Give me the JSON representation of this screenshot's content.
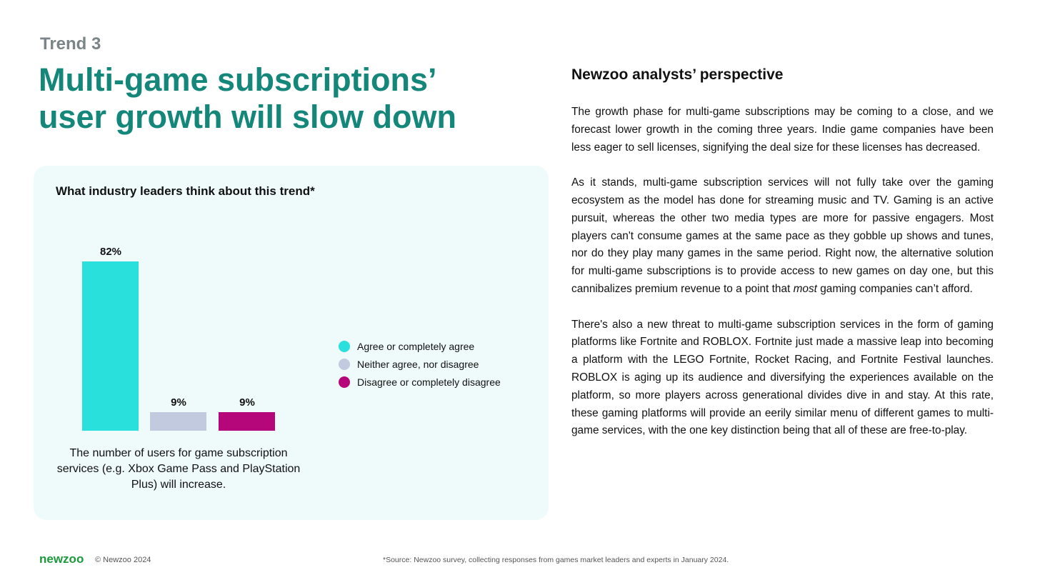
{
  "header": {
    "eyebrow": "Trend 3",
    "title_line1": "Multi-game subscriptions’",
    "title_line2": "user growth will slow down"
  },
  "chart_data": {
    "type": "bar",
    "title": "What industry leaders think about this trend*",
    "categories": [
      "Agree or completely agree",
      "Neither agree, nor disagree",
      "Disagree or completely disagree"
    ],
    "values": [
      82,
      9,
      9
    ],
    "value_labels": [
      "82%",
      "9%",
      "9%"
    ],
    "colors": [
      "#2ae0dd",
      "#c1cadf",
      "#b5077a"
    ],
    "xlabel": "The number of users for game subscription services (e.g. Xbox Game Pass and PlayStation Plus) will increase.",
    "ylabel": "",
    "ylim": [
      0,
      100
    ],
    "legend_position": "right"
  },
  "perspective": {
    "heading": "Newzoo analysts’ perspective",
    "p1": "The growth phase for multi-game subscriptions may be coming to a close, and we forecast lower growth in the coming three years. Indie game companies have been less eager to sell licenses, signifying the deal size for these licenses has decreased.",
    "p2_a": "As it stands, multi-game subscription services will not fully take over the gaming ecosystem as the model has done for streaming music and TV. Gaming is an active pursuit, whereas the other two media types are more for passive engagers. Most players can't consume games at the same pace as they gobble up shows and tunes, nor do they play many games in the same period. Right now, the alternative solution for multi-game subscriptions is to provide access to new games on day one, but this cannibalizes premium revenue to a point that ",
    "p2_em": "most",
    "p2_b": " gaming companies can’t afford.",
    "p3": "There's also a new threat to multi-game subscription services in the form of gaming platforms like Fortnite and ROBLOX. Fortnite just made a massive leap into becoming a platform with the LEGO Fortnite, Rocket Racing, and Fortnite Festival launches. ROBLOX is aging up its audience and diversifying the experiences available on the platform, so more players across generational divides dive in and stay. At this rate, these gaming platforms will provide an eerily similar menu of different games to multi-game services, with the one key distinction being that all of these are free-to-play."
  },
  "footer": {
    "logo": "newzoo",
    "copyright": "© Newzoo 2024",
    "source": "*Source: Newzoo survey, collecting responses from games market leaders and experts in January 2024."
  }
}
